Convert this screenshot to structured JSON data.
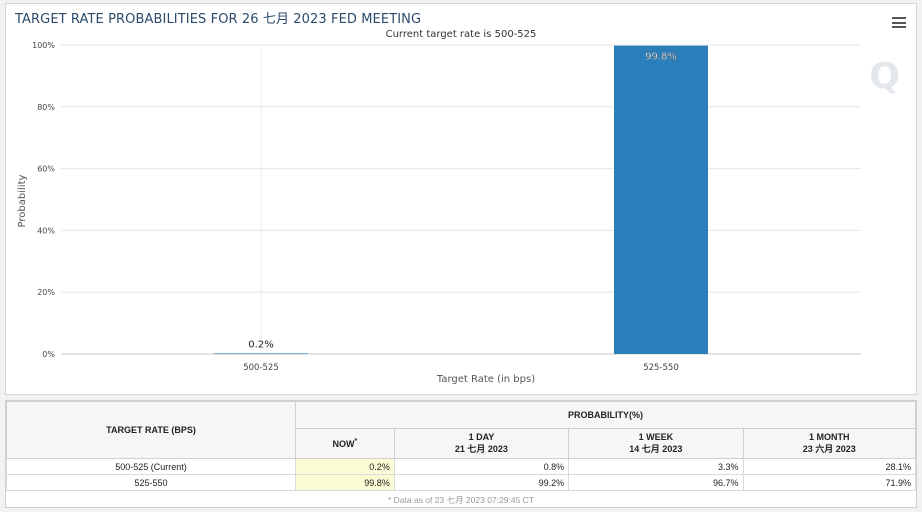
{
  "chart": {
    "title": "TARGET RATE PROBABILITIES FOR 26 七月 2023 FED MEETING",
    "subtitle": "Current target rate is 500-525",
    "menu_icon": "hamburger-menu-icon",
    "watermark": "Q"
  },
  "chart_data": {
    "type": "bar",
    "categories": [
      "500-525",
      "525-550"
    ],
    "values": [
      0.2,
      99.8
    ],
    "data_labels": [
      "0.2%",
      "99.8%"
    ],
    "xlabel": "Target Rate (in bps)",
    "ylabel": "Probability",
    "ylim": [
      0,
      100
    ],
    "yticks": [
      "0%",
      "20%",
      "40%",
      "60%",
      "80%",
      "100%"
    ],
    "grid": true,
    "bar_color": "#2a7fba"
  },
  "table": {
    "header_rate": "TARGET RATE (BPS)",
    "header_prob": "PROBABILITY(%)",
    "columns": [
      {
        "line1": "NOW",
        "line2": "",
        "star": "*"
      },
      {
        "line1": "1 DAY",
        "line2": "21 七月 2023",
        "star": ""
      },
      {
        "line1": "1 WEEK",
        "line2": "14 七月 2023",
        "star": ""
      },
      {
        "line1": "1 MONTH",
        "line2": "23 六月 2023",
        "star": ""
      }
    ],
    "rows": [
      {
        "rate": "500-525 (Current)",
        "values": [
          "0.2%",
          "0.8%",
          "3.3%",
          "28.1%"
        ]
      },
      {
        "rate": "525-550",
        "values": [
          "99.8%",
          "99.2%",
          "96.7%",
          "71.9%"
        ]
      }
    ],
    "footnote": "* Data as of 23 七月 2023 07:29:45 CT"
  }
}
